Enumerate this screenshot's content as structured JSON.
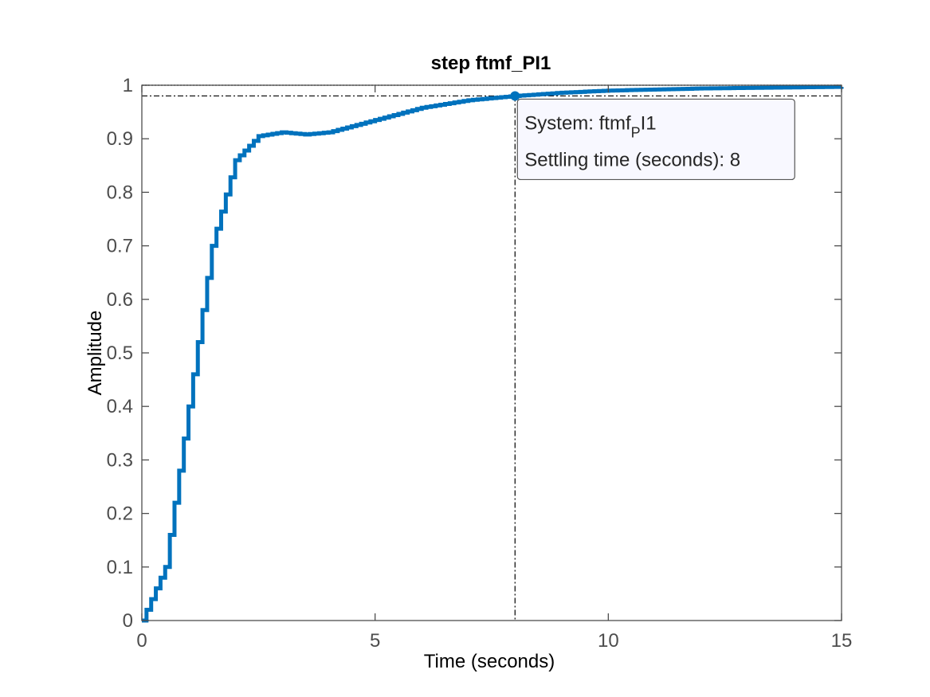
{
  "chart_data": {
    "type": "line",
    "title": "step ftmf_PI1",
    "xlabel": "Time (seconds)",
    "ylabel": "Amplitude",
    "xlim": [
      0,
      15
    ],
    "ylim": [
      0,
      1
    ],
    "x_ticks": [
      "0",
      "5",
      "10",
      "15"
    ],
    "y_ticks": [
      "0",
      "0.1",
      "0.2",
      "0.3",
      "0.4",
      "0.5",
      "0.6",
      "0.7",
      "0.8",
      "0.9",
      "1"
    ],
    "grid": false,
    "line_style": "stairs",
    "step_size": 0.1,
    "colors": {
      "series": "#0072bd",
      "axes": "#4d4d4d",
      "reference": "#000000",
      "tooltip_bg": "#f8f8ff",
      "tooltip_border": "#555555"
    },
    "series": [
      {
        "x": [
          0,
          0.5,
          1.0,
          1.5,
          2.0,
          2.5,
          3.0,
          3.5,
          4.0,
          5.0,
          6.0,
          7.0,
          8.0,
          9.0,
          10.0,
          11.0,
          12.0,
          13.0,
          14.0,
          15.0
        ],
        "y": [
          0,
          0.1,
          0.4,
          0.7,
          0.86,
          0.905,
          0.912,
          0.908,
          0.912,
          0.935,
          0.958,
          0.972,
          0.98,
          0.986,
          0.99,
          0.992,
          0.994,
          0.995,
          0.996,
          0.997
        ]
      }
    ],
    "reference_lines": {
      "steady_state": 1.0,
      "settling_band": 0.98,
      "settling_time": 8
    },
    "annotation": {
      "x": 8,
      "y": 0.98,
      "line1_prefix": "System: ftmf",
      "line1_subscript": "P",
      "line1_suffix": "I1",
      "line2": "Settling time (seconds): 8"
    }
  }
}
